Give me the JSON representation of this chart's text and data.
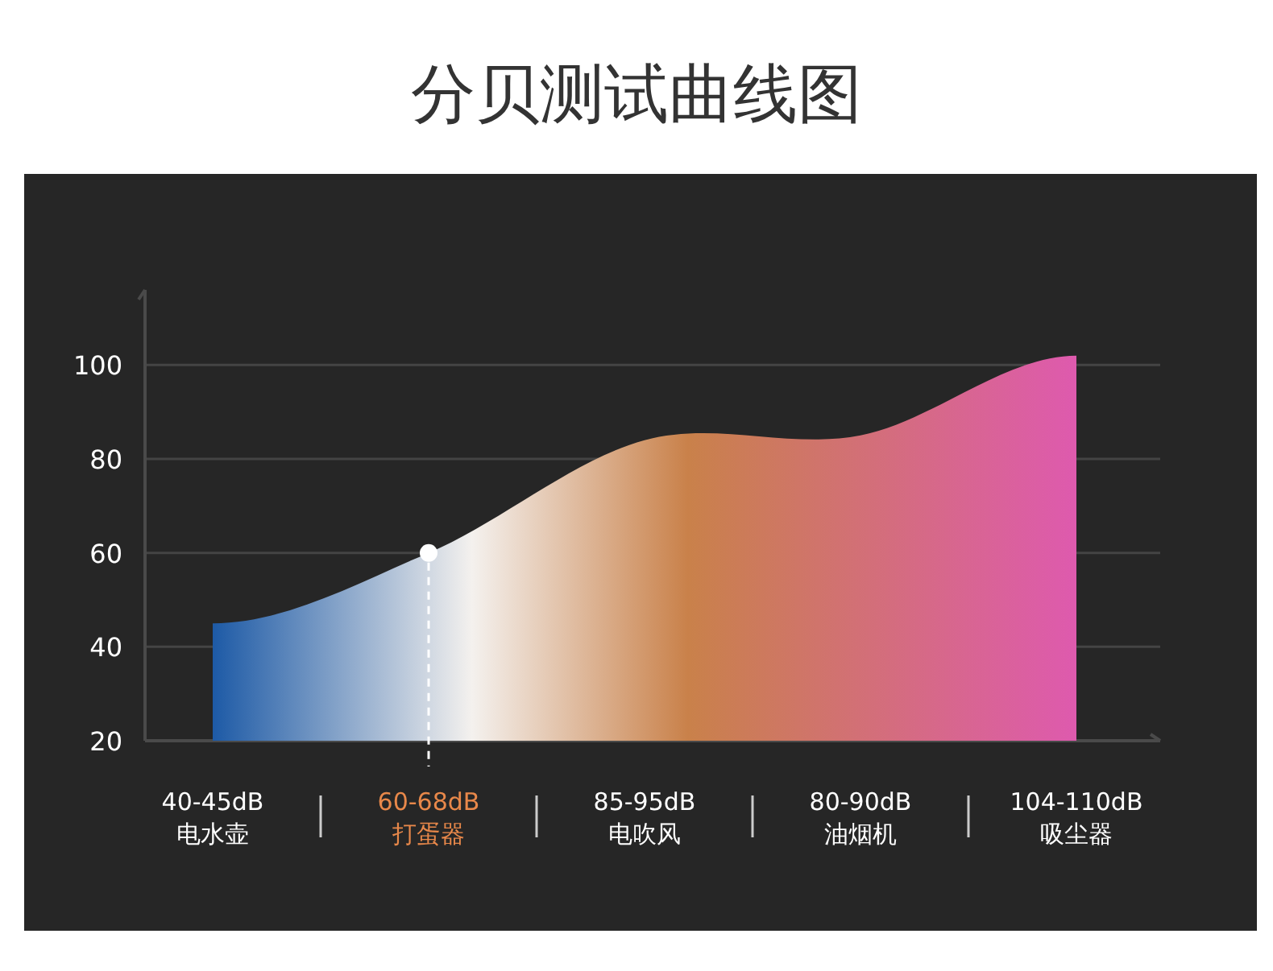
{
  "chart_data": {
    "type": "area",
    "title": "分贝测试曲线图",
    "categories": [
      "40-45dB\n电水壶",
      "60-68dB\n打蛋器",
      "85-95dB\n电吹风",
      "80-90dB\n油烟机",
      "104-110dB\n吸尘器"
    ],
    "series": [
      {
        "color": "#c9814a",
        "values": [
          45,
          60,
          84,
          85,
          102
        ]
      },
      {
        "type": "scatter",
        "color": "#ffffff",
        "x": [
          "60-68dB\n打蛋器"
        ],
        "values": [
          60
        ],
        "marker": "circle"
      }
    ],
    "ylim": [
      20,
      116
    ],
    "yticks": [
      20,
      40,
      60,
      80,
      100
    ],
    "grid": "y",
    "ref_lines": [
      {
        "axis": "x",
        "value": "60-68dB\n打蛋器",
        "color": "#ffffff",
        "line_style": "dashed"
      }
    ]
  }
}
